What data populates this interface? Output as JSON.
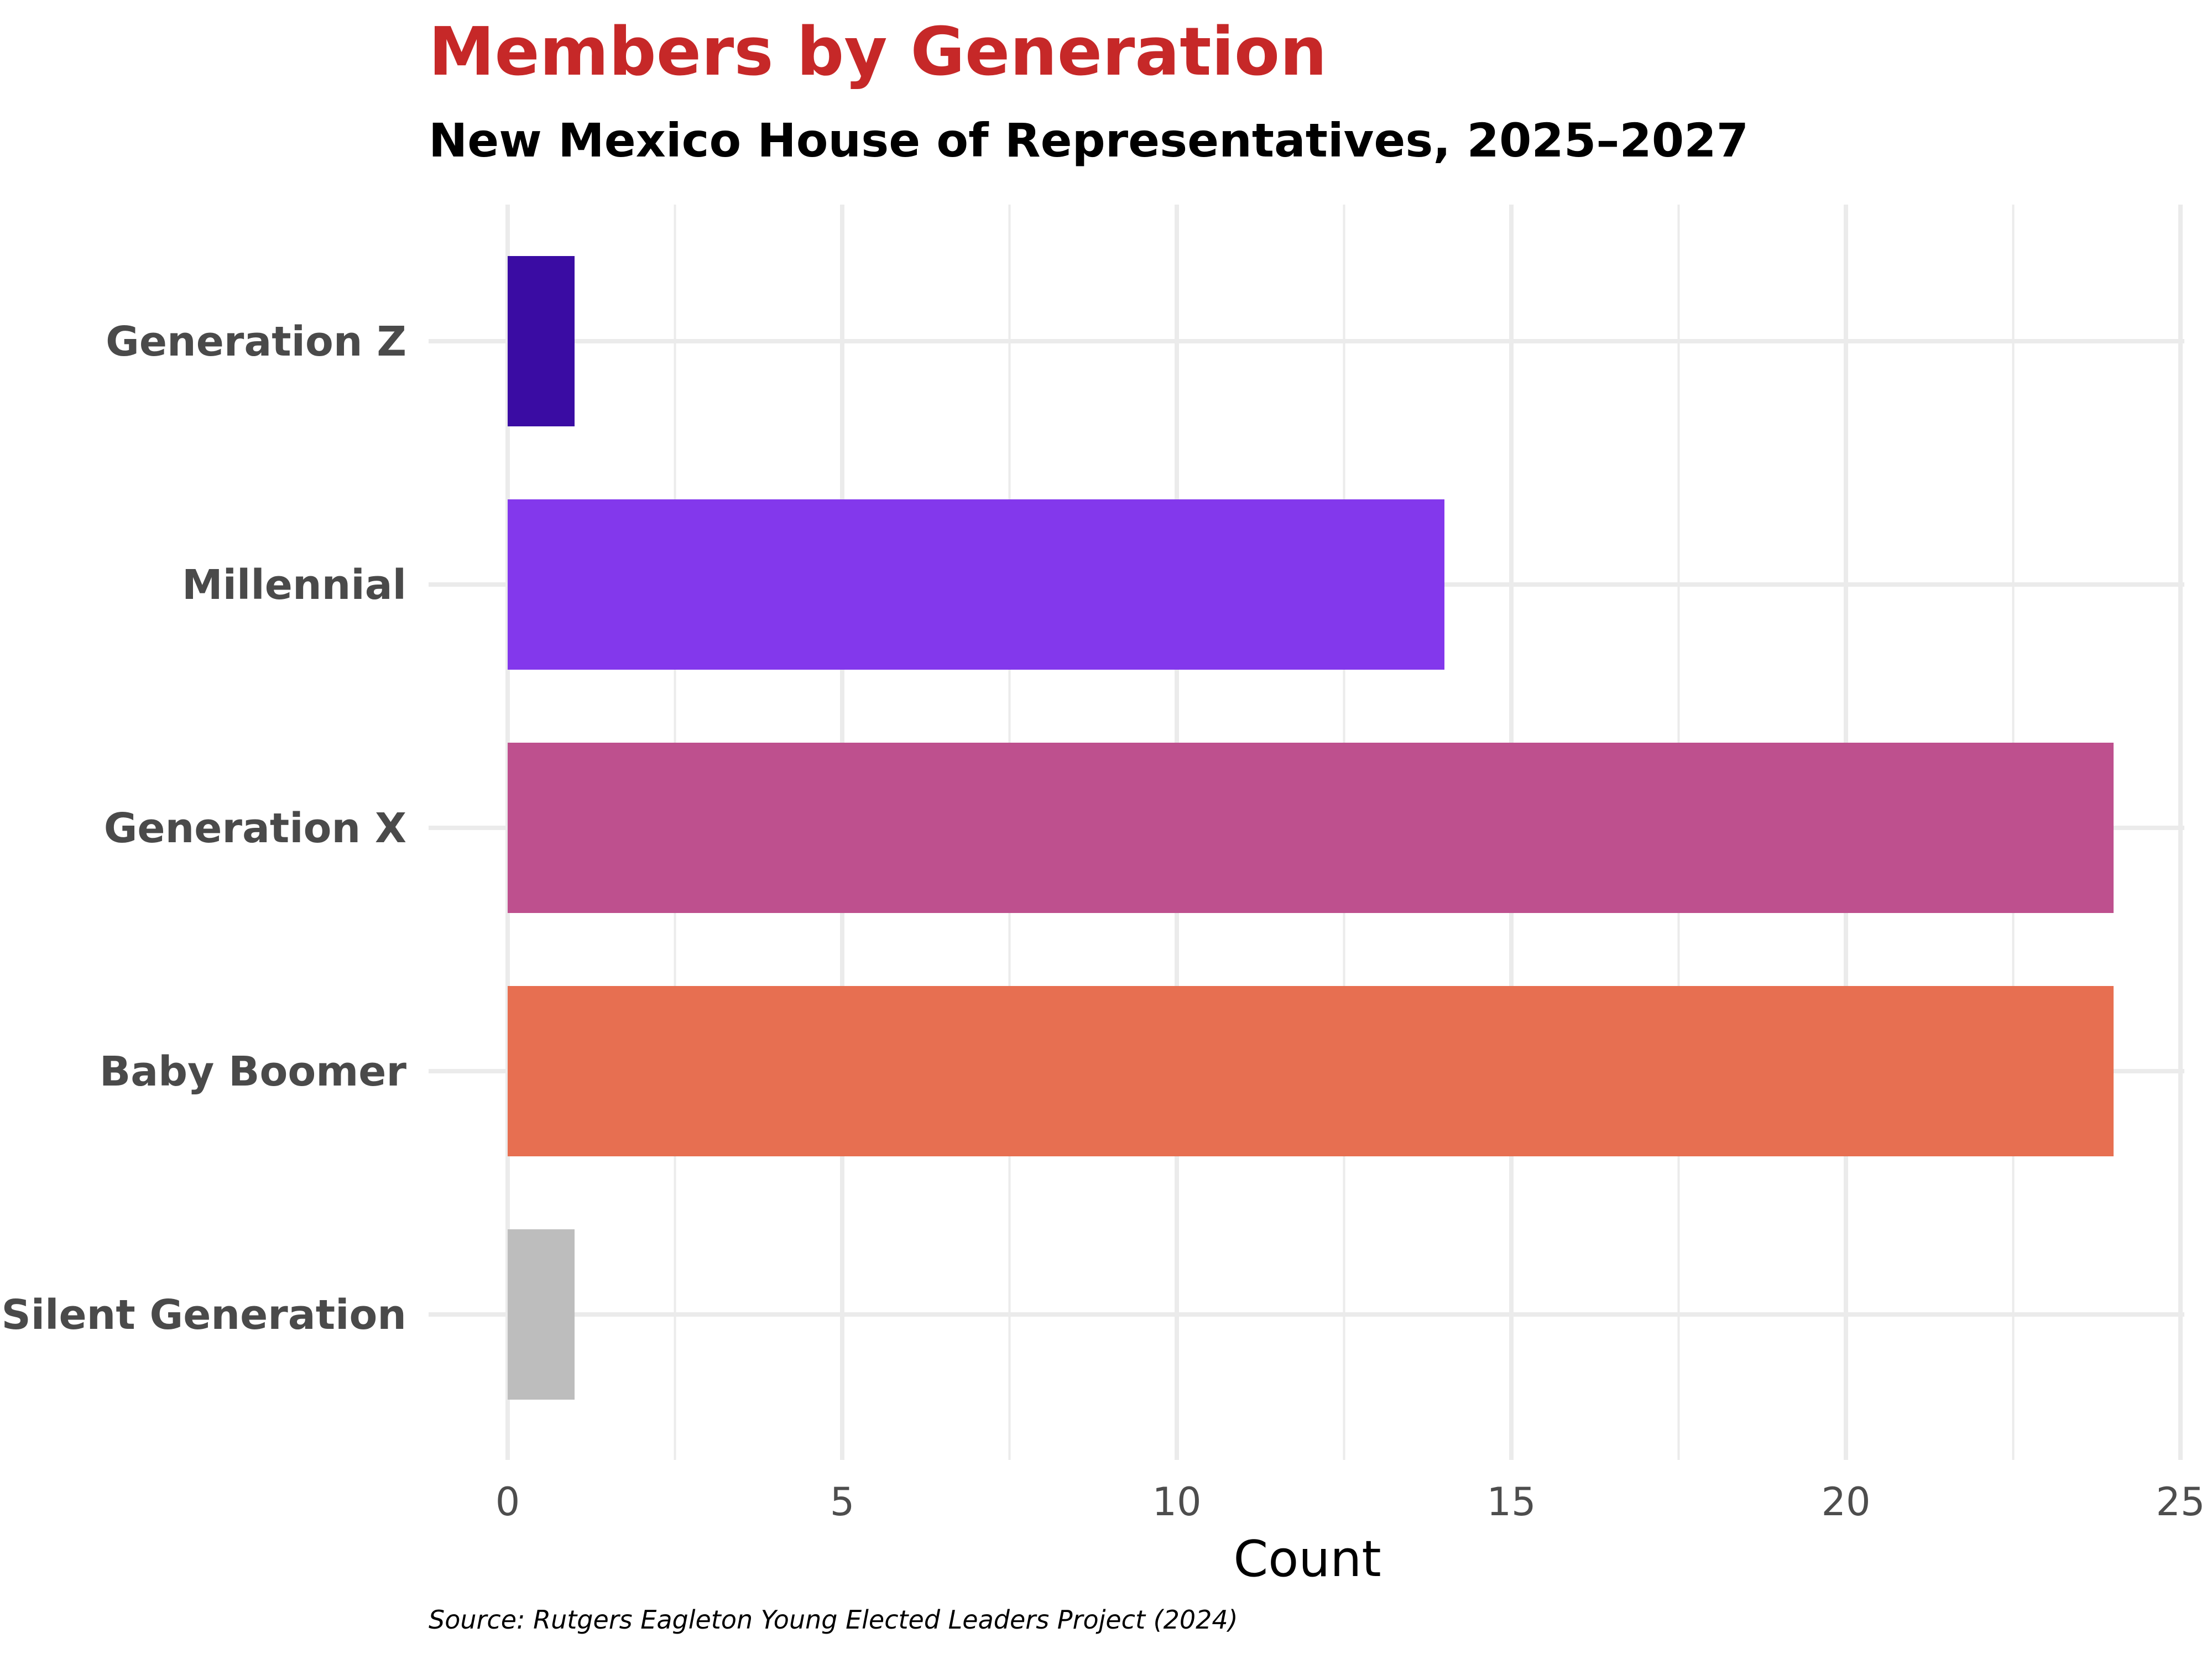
{
  "chart_data": {
    "type": "bar",
    "orientation": "horizontal",
    "title": "Members by Generation",
    "subtitle": "New Mexico House of Representatives, 2025–2027",
    "xlabel": "Count",
    "ylabel": "",
    "caption": "Source: Rutgers Eagleton Young Elected Leaders Project (2024)",
    "categories": [
      "Generation Z",
      "Millennial",
      "Generation X",
      "Baby Boomer",
      "Silent Generation"
    ],
    "values": [
      1,
      14,
      24,
      24,
      1
    ],
    "colors": [
      "#3a0ca3",
      "#8338ec",
      "#be508e",
      "#e76f51",
      "#bdbdbd"
    ],
    "xlim": [
      0,
      25
    ],
    "xticks": [
      0,
      5,
      10,
      15,
      20,
      25
    ],
    "xtick_labels": [
      "0",
      "5",
      "10",
      "15",
      "20",
      "25"
    ],
    "grid": true,
    "legend": "none"
  }
}
